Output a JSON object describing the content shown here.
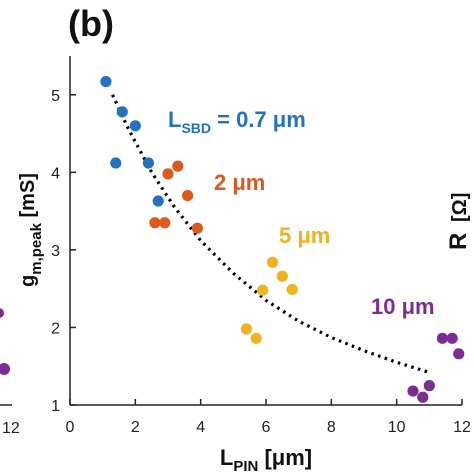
{
  "panel_label": "(b)",
  "chart_data": {
    "type": "scatter",
    "xlabel": "L_PIN [μm]",
    "ylabel": "g_m,peak [mS]",
    "xlim": [
      0,
      12
    ],
    "ylim": [
      1,
      5.5
    ],
    "xticks": [
      "0",
      "2",
      "4",
      "6",
      "8",
      "10",
      "12"
    ],
    "yticks": [
      "1",
      "2",
      "3",
      "4",
      "5"
    ],
    "series": [
      {
        "name": "L_SBD = 0.7 μm",
        "color": "#2471bd",
        "points": [
          [
            1.1,
            5.17
          ],
          [
            1.6,
            4.78
          ],
          [
            2.0,
            4.6
          ],
          [
            1.4,
            4.12
          ],
          [
            2.4,
            4.12
          ],
          [
            2.7,
            3.63
          ]
        ]
      },
      {
        "name": "2 μm",
        "color": "#dd5a1e",
        "points": [
          [
            3.0,
            3.98
          ],
          [
            3.3,
            4.08
          ],
          [
            3.6,
            3.7
          ],
          [
            2.6,
            3.35
          ],
          [
            2.9,
            3.35
          ],
          [
            3.9,
            3.28
          ]
        ]
      },
      {
        "name": "5 μm",
        "color": "#f0b21f",
        "points": [
          [
            6.2,
            2.84
          ],
          [
            6.5,
            2.66
          ],
          [
            5.9,
            2.48
          ],
          [
            6.8,
            2.49
          ],
          [
            5.4,
            1.98
          ],
          [
            5.7,
            1.86
          ]
        ]
      },
      {
        "name": "10 μm",
        "color": "#7b2d91",
        "points": [
          [
            11.4,
            1.86
          ],
          [
            11.7,
            1.86
          ],
          [
            11.9,
            1.66
          ],
          [
            10.5,
            1.18
          ],
          [
            11.0,
            1.25
          ],
          [
            10.8,
            1.1
          ]
        ]
      }
    ],
    "fit_curve": {
      "style": "dotted",
      "color": "#000000",
      "points": [
        [
          1.3,
          5.0
        ],
        [
          1.8,
          4.55
        ],
        [
          2.5,
          4.0
        ],
        [
          3.2,
          3.55
        ],
        [
          4.0,
          3.12
        ],
        [
          5.0,
          2.7
        ],
        [
          6.0,
          2.35
        ],
        [
          7.0,
          2.08
        ],
        [
          8.0,
          1.87
        ],
        [
          9.0,
          1.7
        ],
        [
          10.0,
          1.55
        ],
        [
          11.0,
          1.42
        ]
      ]
    }
  },
  "left_panel_fragment": {
    "x_tick": "12"
  },
  "right_panel_fragment": {
    "ylabel_text": "R",
    "ylabel_unit": "[Ω]"
  }
}
